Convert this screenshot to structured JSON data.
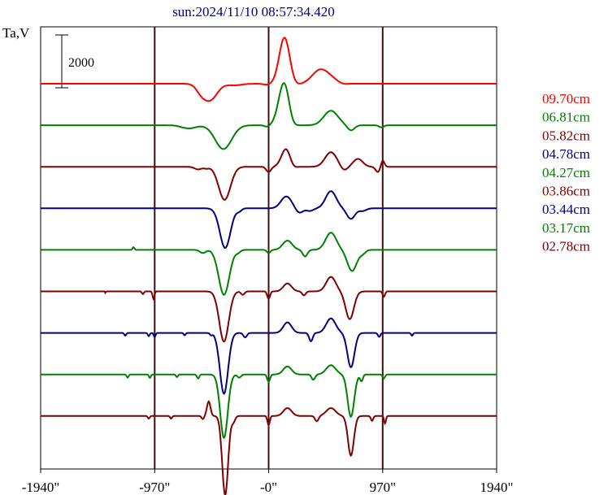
{
  "chart_data": {
    "type": "line",
    "title": "sun:2024/11/10 08:57:34.420",
    "ylabel": "Ta,V",
    "xlabel": "",
    "scale_bar": {
      "label": "2000",
      "value": 2000
    },
    "x_ticks": [
      {
        "value": -1940,
        "label": "-1940\""
      },
      {
        "value": -970,
        "label": "-970\""
      },
      {
        "value": 0,
        "label": "-0\""
      },
      {
        "value": 970,
        "label": "970\""
      },
      {
        "value": 1940,
        "label": "1940\""
      }
    ],
    "xlim": [
      -1940,
      1940
    ],
    "vertical_lines": [
      -970,
      0,
      970
    ],
    "trace_step": 2000,
    "series": [
      {
        "name": "09.70cm",
        "color": "#ff0000",
        "peaks": [
          [
            -580,
            -200,
            40
          ],
          [
            -500,
            -620,
            60
          ],
          [
            -290,
            -60,
            60
          ],
          [
            -15,
            -40,
            30
          ],
          [
            135,
            1750,
            45
          ],
          [
            220,
            -80,
            40
          ],
          [
            420,
            250,
            60
          ],
          [
            480,
            350,
            80
          ],
          [
            625,
            -50,
            40
          ]
        ]
      },
      {
        "name": "06.81cm",
        "color": "#008000",
        "peaks": [
          [
            -680,
            -120,
            60
          ],
          [
            -385,
            -900,
            70
          ],
          [
            -15,
            -60,
            20
          ],
          [
            100,
            520,
            40
          ],
          [
            140,
            1250,
            40
          ],
          [
            200,
            -100,
            30
          ],
          [
            530,
            550,
            60
          ],
          [
            700,
            -200,
            30
          ],
          [
            960,
            -80,
            20
          ]
        ]
      },
      {
        "name": "05.82cm",
        "color": "#800000",
        "peaks": [
          [
            -600,
            -100,
            30
          ],
          [
            -530,
            -60,
            20
          ],
          [
            -375,
            -1250,
            50
          ],
          [
            0,
            -200,
            20
          ],
          [
            150,
            700,
            40
          ],
          [
            200,
            -150,
            30
          ],
          [
            530,
            550,
            50
          ],
          [
            640,
            -150,
            30
          ],
          [
            760,
            300,
            40
          ],
          [
            930,
            -200,
            20
          ],
          [
            970,
            250,
            15
          ]
        ]
      },
      {
        "name": "04.78cm",
        "color": "#000080",
        "peaks": [
          [
            -370,
            -1500,
            45
          ],
          [
            -250,
            -100,
            20
          ],
          [
            150,
            450,
            45
          ],
          [
            260,
            -180,
            30
          ],
          [
            350,
            -100,
            30
          ],
          [
            530,
            650,
            45
          ],
          [
            700,
            -400,
            35
          ],
          [
            800,
            -100,
            30
          ]
        ]
      },
      {
        "name": "04.27cm",
        "color": "#008000",
        "peaks": [
          [
            -1150,
            100,
            8
          ],
          [
            -560,
            -120,
            25
          ],
          [
            -380,
            -1700,
            45
          ],
          [
            -260,
            -90,
            20
          ],
          [
            0,
            -120,
            15
          ],
          [
            160,
            350,
            40
          ],
          [
            310,
            -250,
            20
          ],
          [
            530,
            650,
            45
          ],
          [
            710,
            -800,
            40
          ],
          [
            800,
            -130,
            25
          ]
        ]
      },
      {
        "name": "03.86cm",
        "color": "#800000",
        "peaks": [
          [
            -1400,
            -120,
            8
          ],
          [
            -1070,
            -100,
            8
          ],
          [
            -980,
            -280,
            8
          ],
          [
            -380,
            -1900,
            40
          ],
          [
            -220,
            -130,
            15
          ],
          [
            0,
            -280,
            12
          ],
          [
            160,
            300,
            35
          ],
          [
            300,
            -150,
            15
          ],
          [
            530,
            550,
            40
          ],
          [
            690,
            -1050,
            35
          ],
          [
            980,
            -200,
            10
          ],
          [
            1440,
            -150,
            8
          ]
        ]
      },
      {
        "name": "03.44cm",
        "color": "#000080",
        "peaks": [
          [
            -1220,
            -100,
            8
          ],
          [
            -1020,
            -120,
            8
          ],
          [
            -970,
            -150,
            8
          ],
          [
            -715,
            -90,
            8
          ],
          [
            -490,
            -80,
            10
          ],
          [
            -380,
            -2300,
            35
          ],
          [
            -200,
            -170,
            15
          ],
          [
            160,
            400,
            35
          ],
          [
            360,
            -320,
            15
          ],
          [
            530,
            550,
            40
          ],
          [
            700,
            -1300,
            30
          ],
          [
            940,
            -150,
            10
          ],
          [
            1220,
            -100,
            8
          ],
          [
            1590,
            -80,
            8
          ]
        ]
      },
      {
        "name": "03.17cm",
        "color": "#008000",
        "peaks": [
          [
            -1200,
            -120,
            8
          ],
          [
            -1010,
            -130,
            8
          ],
          [
            -780,
            -100,
            8
          ],
          [
            -600,
            -150,
            10
          ],
          [
            -380,
            -2400,
            32
          ],
          [
            -250,
            -120,
            15
          ],
          [
            0,
            -280,
            12
          ],
          [
            160,
            300,
            35
          ],
          [
            380,
            -200,
            15
          ],
          [
            530,
            350,
            40
          ],
          [
            700,
            -1600,
            28
          ],
          [
            790,
            -250,
            12
          ],
          [
            980,
            -150,
            10
          ]
        ]
      },
      {
        "name": "02.78cm",
        "color": "#800000",
        "peaks": [
          [
            -1020,
            -100,
            8
          ],
          [
            -830,
            -100,
            8
          ],
          [
            -560,
            -120,
            10
          ],
          [
            -510,
            550,
            15
          ],
          [
            -370,
            -3000,
            25
          ],
          [
            -300,
            -220,
            15
          ],
          [
            0,
            -350,
            10
          ],
          [
            160,
            300,
            35
          ],
          [
            410,
            -200,
            15
          ],
          [
            530,
            300,
            40
          ],
          [
            700,
            -1500,
            25
          ],
          [
            880,
            -180,
            10
          ],
          [
            990,
            -280,
            8
          ]
        ]
      }
    ]
  }
}
